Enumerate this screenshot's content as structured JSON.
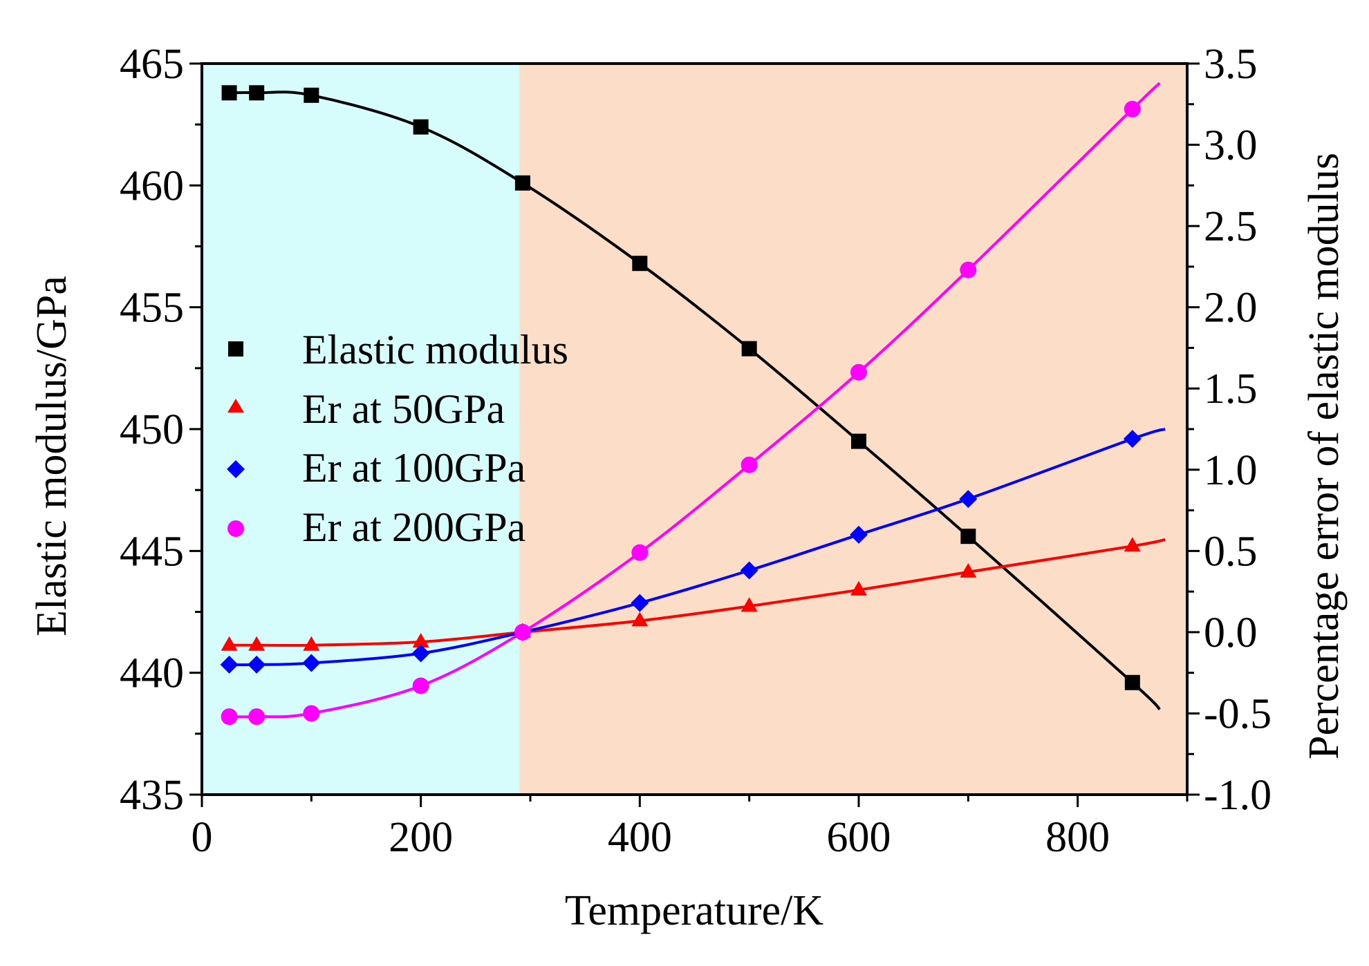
{
  "chart_data": {
    "type": "line",
    "xlabel": "Temperature/K",
    "ylabel": "Elastic modulus/GPa",
    "y2label": "Percentage error of elastic modulus",
    "xlim": [
      0,
      900
    ],
    "ylim": [
      435,
      465
    ],
    "y2lim": [
      -1.0,
      3.5
    ],
    "x_ticks": [
      "0",
      "200",
      "400",
      "600",
      "800"
    ],
    "y_ticks": [
      "435",
      "440",
      "445",
      "450",
      "455",
      "460",
      "465"
    ],
    "y2_ticks": [
      "-1.0",
      "-0.5",
      "0.0",
      "0.5",
      "1.0",
      "1.5",
      "2.0",
      "2.5",
      "3.0",
      "3.5"
    ],
    "regions": [
      {
        "name": "low-temperature-region",
        "x_from": 0,
        "x_to": 290,
        "color": "#d6fcfc"
      },
      {
        "name": "high-temperature-region",
        "x_from": 290,
        "x_to": 900,
        "color": "#fbddc8"
      }
    ],
    "legend_position": "center-left",
    "series": [
      {
        "name": "Elastic modulus",
        "axis": "left",
        "marker": "square",
        "color": "#000000",
        "x": [
          25,
          50,
          100,
          200,
          293,
          400,
          500,
          600,
          700,
          850
        ],
        "y": [
          463.8,
          463.8,
          463.7,
          462.4,
          460.1,
          456.8,
          453.3,
          449.5,
          445.6,
          439.6
        ],
        "fit_end": [
          875,
          438.5
        ]
      },
      {
        "name": "Er at 50GPa",
        "axis": "right",
        "marker": "triangle",
        "color": "#ff0000",
        "x": [
          25,
          50,
          100,
          200,
          293,
          400,
          500,
          600,
          700,
          850
        ],
        "y": [
          -0.08,
          -0.08,
          -0.08,
          -0.06,
          0.0,
          0.07,
          0.16,
          0.26,
          0.37,
          0.53
        ],
        "fit_end": [
          880,
          0.57
        ]
      },
      {
        "name": "Er at 100GPa",
        "axis": "right",
        "marker": "diamond",
        "color": "#0000ff",
        "x": [
          25,
          50,
          100,
          200,
          293,
          400,
          500,
          600,
          700,
          850
        ],
        "y": [
          -0.2,
          -0.2,
          -0.19,
          -0.13,
          0.0,
          0.18,
          0.38,
          0.6,
          0.82,
          1.19
        ],
        "fit_end": [
          880,
          1.25
        ]
      },
      {
        "name": "Er at 200GPa",
        "axis": "right",
        "marker": "circle",
        "color": "#ff00ff",
        "x": [
          25,
          50,
          100,
          200,
          293,
          400,
          500,
          600,
          700,
          850
        ],
        "y": [
          -0.52,
          -0.52,
          -0.5,
          -0.33,
          0.0,
          0.49,
          1.03,
          1.6,
          2.23,
          3.22
        ],
        "fit_end": [
          875,
          3.38
        ]
      }
    ]
  }
}
